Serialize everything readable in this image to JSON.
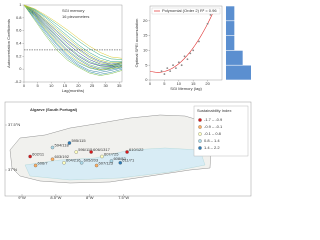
{
  "chart_data": [
    {
      "type": "line",
      "annotations": [
        "SGI memory",
        "16 piezometers"
      ],
      "ylabel": "Autocorrelation Coefficients",
      "xlabel": "Lag(months)",
      "x": [
        0,
        4,
        8,
        12,
        16,
        20,
        24,
        28,
        32,
        36
      ],
      "xlim": [
        0,
        36
      ],
      "xticks": [
        0,
        5,
        10,
        15,
        20,
        25,
        30,
        35
      ],
      "ylim": [
        -0.2,
        1
      ],
      "yticks": [
        -0.2,
        0,
        0.2,
        0.4,
        0.6,
        0.8,
        1
      ],
      "hline": 0.3,
      "series": [
        {
          "color": "#2b3a8c",
          "values": [
            1,
            0.86,
            0.68,
            0.5,
            0.34,
            0.2,
            0.1,
            0.05,
            0.04,
            0.06
          ]
        },
        {
          "color": "#2f4a96",
          "values": [
            1,
            0.88,
            0.72,
            0.55,
            0.4,
            0.26,
            0.15,
            0.08,
            0.06,
            0.08
          ]
        },
        {
          "color": "#335c9e",
          "values": [
            1,
            0.9,
            0.75,
            0.6,
            0.45,
            0.32,
            0.2,
            0.12,
            0.08,
            0.1
          ]
        },
        {
          "color": "#356da3",
          "values": [
            1,
            0.84,
            0.64,
            0.45,
            0.28,
            0.15,
            0.05,
            0.0,
            0.02,
            0.05
          ]
        },
        {
          "color": "#347ea5",
          "values": [
            1,
            0.8,
            0.58,
            0.38,
            0.2,
            0.07,
            -0.02,
            -0.05,
            -0.02,
            0.02
          ]
        },
        {
          "color": "#318ea3",
          "values": [
            1,
            0.78,
            0.55,
            0.34,
            0.17,
            0.05,
            -0.04,
            -0.08,
            -0.05,
            0.0
          ]
        },
        {
          "color": "#2e9c9c",
          "values": [
            1,
            0.82,
            0.6,
            0.4,
            0.22,
            0.1,
            0.02,
            -0.02,
            0.0,
            0.03
          ]
        },
        {
          "color": "#30a58f",
          "values": [
            1,
            0.92,
            0.8,
            0.66,
            0.52,
            0.38,
            0.26,
            0.17,
            0.12,
            0.12
          ]
        },
        {
          "color": "#3aad7f",
          "values": [
            1,
            0.93,
            0.82,
            0.7,
            0.57,
            0.44,
            0.32,
            0.22,
            0.16,
            0.15
          ]
        },
        {
          "color": "#4cb46d",
          "values": [
            1,
            0.87,
            0.7,
            0.52,
            0.36,
            0.22,
            0.12,
            0.06,
            0.05,
            0.08
          ]
        },
        {
          "color": "#62ba5a",
          "values": [
            1,
            0.85,
            0.66,
            0.47,
            0.3,
            0.17,
            0.07,
            0.02,
            0.03,
            0.06
          ]
        },
        {
          "color": "#7bbf48",
          "values": [
            1,
            0.76,
            0.52,
            0.3,
            0.14,
            0.03,
            -0.06,
            -0.1,
            -0.07,
            -0.02
          ]
        },
        {
          "color": "#95c33a",
          "values": [
            1,
            0.89,
            0.74,
            0.58,
            0.43,
            0.3,
            0.18,
            0.1,
            0.07,
            0.09
          ]
        },
        {
          "color": "#afc630",
          "values": [
            1,
            0.91,
            0.77,
            0.63,
            0.49,
            0.35,
            0.23,
            0.14,
            0.1,
            0.11
          ]
        },
        {
          "color": "#c6c82c",
          "values": [
            1,
            0.83,
            0.62,
            0.42,
            0.25,
            0.12,
            0.03,
            -0.01,
            0.01,
            0.04
          ]
        },
        {
          "color": "#dccb2e",
          "values": [
            1,
            0.94,
            0.84,
            0.73,
            0.61,
            0.48,
            0.36,
            0.26,
            0.19,
            0.17
          ]
        }
      ]
    },
    {
      "type": "scatter",
      "xlabel": "SGI Memory (lag)",
      "ylabel": "Optimal SPEI accumulation",
      "x": [
        4,
        5,
        6,
        7,
        8,
        9,
        10,
        11,
        12,
        13,
        14,
        15,
        17,
        20,
        21
      ],
      "values": [
        3,
        2,
        4,
        3,
        5,
        4,
        6,
        5,
        8,
        7,
        9,
        10,
        13,
        19,
        22
      ],
      "color": "#888888",
      "xlim": [
        0,
        25
      ],
      "xticks": [
        0,
        5,
        10,
        15,
        20
      ],
      "ylim": [
        0,
        25
      ],
      "yticks": [
        0,
        5,
        10,
        15,
        20
      ],
      "trendline": {
        "label": "Polynomial (Order 2) R² = 0.96",
        "color": "#e03030",
        "coefficients": [
          3,
          -0.3,
          0.055
        ]
      },
      "right_hist": {
        "bins": [
          0,
          5,
          10,
          15,
          20,
          25
        ],
        "counts": [
          6,
          4,
          2,
          2,
          2
        ],
        "color": "#5b8fd0"
      }
    }
  ],
  "map": {
    "title": "Algarve (South Portugal)",
    "legend_title": "Sustainability Index",
    "class_edges": [
      -1.7,
      -0.9,
      -0.1,
      0.8,
      1.4,
      2.2
    ],
    "class_labels": [
      "-1.7 – -0.9",
      "-0.9 – -0.1",
      "-0.1 – 0.8",
      "0.8 – 1.4",
      "1.4 – 2.2"
    ],
    "class_colors": [
      "#d7191c",
      "#fdae61",
      "#ffffbf",
      "#abd9e9",
      "#2c7bb6"
    ],
    "lonlim": [
      -9.1,
      -7.3
    ],
    "latlim": [
      36.95,
      37.6
    ],
    "lonticks": [
      {
        "value": -9,
        "label": "9°W"
      },
      {
        "value": -8.5,
        "label": "8.5°W"
      },
      {
        "value": -8,
        "label": "8°W"
      },
      {
        "value": -7.5,
        "label": "7.5°W"
      }
    ],
    "latticks": [
      {
        "value": 37.5,
        "label": "37.5°N"
      },
      {
        "value": 37,
        "label": "37°N"
      }
    ],
    "sites": [
      {
        "label": "602/11",
        "lon": -8.88,
        "lat": 37.15,
        "index": -1.2
      },
      {
        "label": "606/7",
        "lon": -8.8,
        "lat": 37.05,
        "index": -0.5
      },
      {
        "label": "594/118",
        "lon": -8.55,
        "lat": 37.25,
        "index": 1.1
      },
      {
        "label": "595/115",
        "lon": -8.3,
        "lat": 37.3,
        "index": 1.8
      },
      {
        "label": "596/115",
        "lon": -8.2,
        "lat": 37.2,
        "index": 0.3
      },
      {
        "label": "603/192",
        "lon": -8.55,
        "lat": 37.12,
        "index": -0.4
      },
      {
        "label": "604/216",
        "lon": -8.38,
        "lat": 37.08,
        "index": 0.2
      },
      {
        "label": "605/203",
        "lon": -8.12,
        "lat": 37.08,
        "index": 1.0
      },
      {
        "label": "606/1317",
        "lon": -7.98,
        "lat": 37.2,
        "index": -1.3
      },
      {
        "label": "607/725",
        "lon": -7.82,
        "lat": 37.15,
        "index": 0.5
      },
      {
        "label": "608/82",
        "lon": -7.68,
        "lat": 37.1,
        "index": 1.2
      },
      {
        "label": "610/122",
        "lon": -7.45,
        "lat": 37.2,
        "index": -1.0
      },
      {
        "label": "607/123",
        "lon": -7.9,
        "lat": 37.05,
        "index": -0.6
      },
      {
        "label": "611/71",
        "lon": -7.55,
        "lat": 37.08,
        "index": 1.9
      }
    ]
  }
}
